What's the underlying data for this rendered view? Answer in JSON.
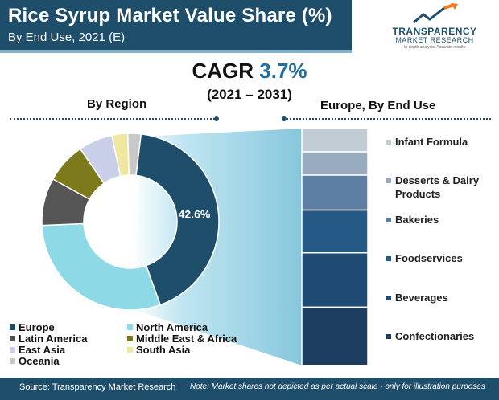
{
  "header": {
    "title": "Rice Syrup Market Value Share (%)",
    "subtitle": "By End Use, 2021 (E)"
  },
  "logo": {
    "name": "TRANSPARENCY",
    "sub": "MARKET RESEARCH",
    "tagline": "In-depth analysis. Accurate results"
  },
  "cagr": {
    "label": "CAGR",
    "value": "3.7%",
    "years": "(2021 – 2031)"
  },
  "colors": {
    "primary": "#1f4e6b",
    "accent": "#1f6f9f",
    "logo_arrow": "#f07a1a"
  },
  "chart_data": [
    {
      "type": "pie",
      "title": "By Region",
      "donut": true,
      "labels": [
        "Europe",
        "North America",
        "Latin America",
        "Middle East & Africa",
        "East Asia",
        "South Asia",
        "Oceania"
      ],
      "values": [
        42.6,
        29.8,
        8.7,
        7.4,
        6.2,
        2.9,
        2.4
      ],
      "colors": [
        "#1f4e6b",
        "#8ed9e6",
        "#555555",
        "#7d7a1c",
        "#c8cfe6",
        "#efe6a0",
        "#c8c8c8"
      ],
      "data_labels": [
        "42.6%",
        "",
        "",
        "",
        "",
        "",
        ""
      ],
      "legend_placement": "bottom"
    },
    {
      "type": "bar",
      "stacked": true,
      "title": "Europe, By End Use",
      "categories": [
        "Infant Formula",
        "Desserts & Dairy Products",
        "Bakeries",
        "Foodservices",
        "Beverages",
        "Confectionaries"
      ],
      "values": [
        6,
        6,
        9,
        11,
        14,
        15
      ],
      "colors": [
        "#c2ccd5",
        "#98abbf",
        "#5c7ea3",
        "#255a86",
        "#1f4a73",
        "#1c3d5f"
      ],
      "legend_placement": "right"
    }
  ],
  "footer": {
    "source": "Source: Transparency Market Research",
    "note": "Note: Market shares not depicted as per actual scale - only for illustration purposes"
  }
}
